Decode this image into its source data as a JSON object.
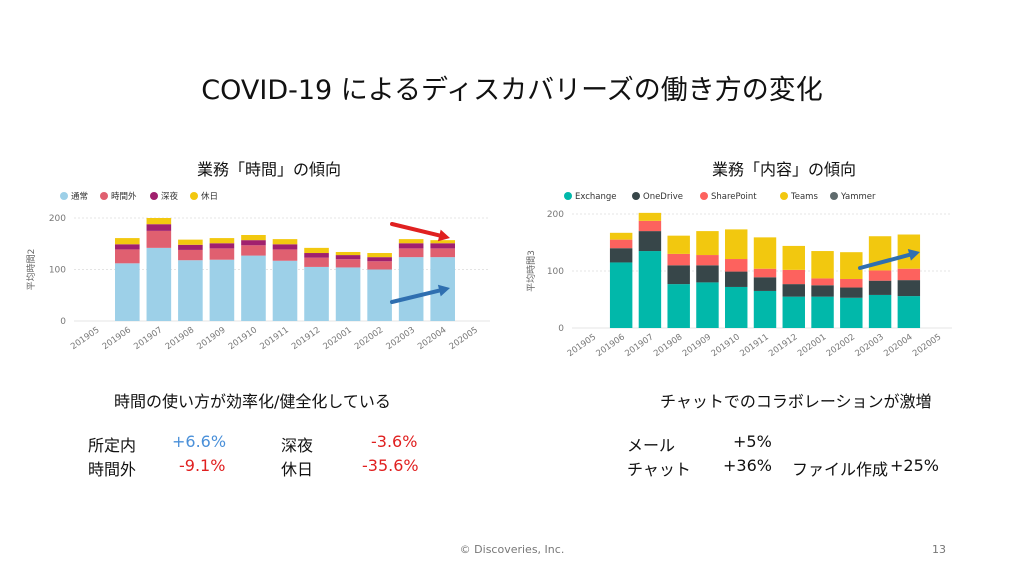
{
  "title": "COVID-19 によるディスカバリーズの働き方の変化",
  "left": {
    "subtitle": "業務「時間」の傾向",
    "caption": "時間の使い方が効率化/健全化している",
    "stats": [
      {
        "label": "所定内",
        "value": "+6.6%"
      },
      {
        "label": "時間外",
        "value": "-9.1%"
      },
      {
        "label": "深夜",
        "value": "-3.6%"
      },
      {
        "label": "休日",
        "value": "-35.6%"
      }
    ]
  },
  "right": {
    "subtitle": "業務「内容」の傾向",
    "caption": "チャットでのコラボレーションが激増",
    "stats": [
      {
        "label": "メール",
        "value": "+5%"
      },
      {
        "label": "チャット",
        "value": "+36%"
      },
      {
        "label": "ファイル作成",
        "value": "+25%"
      }
    ]
  },
  "colors": {
    "time": [
      "#9dd0e8",
      "#e06070",
      "#a0206e",
      "#f2c80f"
    ],
    "content": [
      "#01b8aa",
      "#374649",
      "#fd625e",
      "#f2c80f",
      "#5f6b6d"
    ],
    "red_arrow": "#e02020",
    "blue_arrow": "#2f6fb0"
  },
  "chart_data": [
    {
      "type": "bar",
      "stacked": true,
      "ylabel": "平均時間2",
      "ylim": [
        0,
        200
      ],
      "yticks": [
        0,
        100,
        200
      ],
      "categories": [
        "201905",
        "201906",
        "201907",
        "201908",
        "201909",
        "201910",
        "201911",
        "201912",
        "202001",
        "202002",
        "202003",
        "202004",
        "202005"
      ],
      "series": [
        {
          "name": "通常",
          "values": [
            0,
            112,
            142,
            118,
            119,
            127,
            117,
            105,
            104,
            100,
            124,
            124,
            0
          ]
        },
        {
          "name": "時間外",
          "values": [
            0,
            27,
            33,
            20,
            22,
            20,
            22,
            18,
            16,
            16,
            17,
            17,
            0
          ]
        },
        {
          "name": "深夜",
          "values": [
            0,
            10,
            13,
            10,
            10,
            10,
            10,
            9,
            8,
            8,
            10,
            10,
            0
          ]
        },
        {
          "name": "休日",
          "values": [
            0,
            12,
            12,
            10,
            10,
            10,
            10,
            10,
            6,
            8,
            8,
            6,
            0
          ]
        }
      ],
      "legend": "top-left"
    },
    {
      "type": "bar",
      "stacked": true,
      "ylabel": "平均時間3",
      "ylim": [
        0,
        200
      ],
      "yticks": [
        0,
        100,
        200
      ],
      "categories": [
        "201905",
        "201906",
        "201907",
        "201908",
        "201909",
        "201910",
        "201911",
        "201912",
        "202001",
        "202002",
        "202003",
        "202004",
        "202005"
      ],
      "series": [
        {
          "name": "Exchange",
          "values": [
            0,
            115,
            135,
            77,
            80,
            72,
            65,
            55,
            55,
            53,
            58,
            56,
            0
          ]
        },
        {
          "name": "OneDrive",
          "values": [
            0,
            25,
            35,
            33,
            30,
            27,
            24,
            22,
            20,
            18,
            25,
            28,
            0
          ]
        },
        {
          "name": "SharePoint",
          "values": [
            0,
            15,
            18,
            20,
            18,
            22,
            15,
            25,
            12,
            15,
            18,
            20,
            0
          ]
        },
        {
          "name": "Teams",
          "values": [
            0,
            12,
            14,
            32,
            42,
            52,
            55,
            42,
            48,
            47,
            60,
            60,
            0
          ]
        },
        {
          "name": "Yammer",
          "values": [
            0,
            0,
            0,
            0,
            0,
            0,
            0,
            0,
            0,
            0,
            0,
            0,
            0
          ]
        }
      ],
      "legend": "top-left"
    }
  ]
}
